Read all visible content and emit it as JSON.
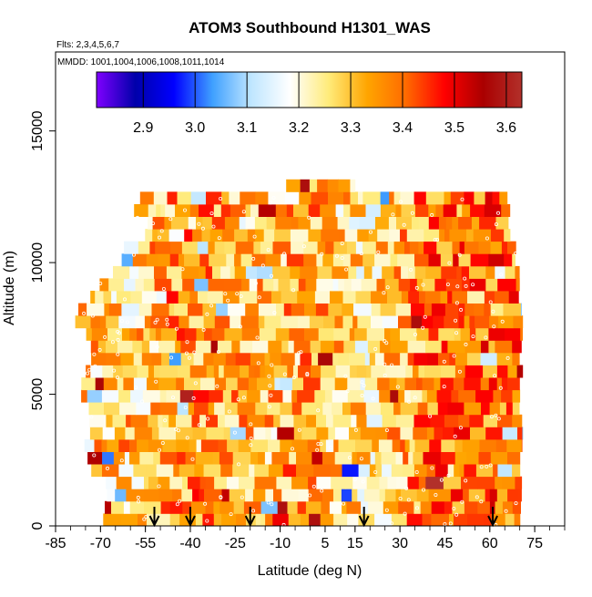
{
  "chart_data": {
    "type": "heatmap",
    "title": "ATOM3 Southbound H1301_WAS",
    "subtitle_flights": "Flts: 2,3,4,5,6,7",
    "subtitle_dates": "MMDD: 1001,1004,1006,1008,1011,1014",
    "xlabel": "Latitude (deg N)",
    "ylabel": "Altitude (m)",
    "xlim": [
      -85,
      85
    ],
    "ylim": [
      0,
      18000
    ],
    "x_tick_labels": [
      "-85",
      "-70",
      "-55",
      "-40",
      "-25",
      "-10",
      "5",
      "15",
      "30",
      "45",
      "60",
      "75"
    ],
    "x_tick_values": [
      -85,
      -70,
      -55,
      -40,
      -25,
      -10,
      5,
      15,
      30,
      45,
      60,
      75
    ],
    "y_tick_labels": [
      "0",
      "5000",
      "10000",
      "15000"
    ],
    "y_tick_values": [
      0,
      5000,
      10000,
      15000
    ],
    "colorbar": {
      "tick_labels": [
        "2.9",
        "3.0",
        "3.1",
        "3.2",
        "3.3",
        "3.4",
        "3.5",
        "3.6"
      ],
      "tick_values": [
        2.9,
        3.0,
        3.1,
        3.2,
        3.3,
        3.4,
        3.5,
        3.6
      ],
      "range": [
        2.81,
        3.63
      ],
      "colors": [
        "#7f00ff",
        "#0000aa",
        "#0000ff",
        "#3fa0ff",
        "#bfe6ff",
        "#ffffff",
        "#ffeb7a",
        "#ffa500",
        "#ff6a00",
        "#ff0000",
        "#aa0000",
        "#b2302a"
      ]
    },
    "arrow_latitudes": [
      -52,
      -40,
      -20,
      18,
      61
    ],
    "data_extent": {
      "lat_range": [
        -83,
        71
      ],
      "altitude_max": 12900
    },
    "grid": false,
    "legend_placement": "top"
  }
}
